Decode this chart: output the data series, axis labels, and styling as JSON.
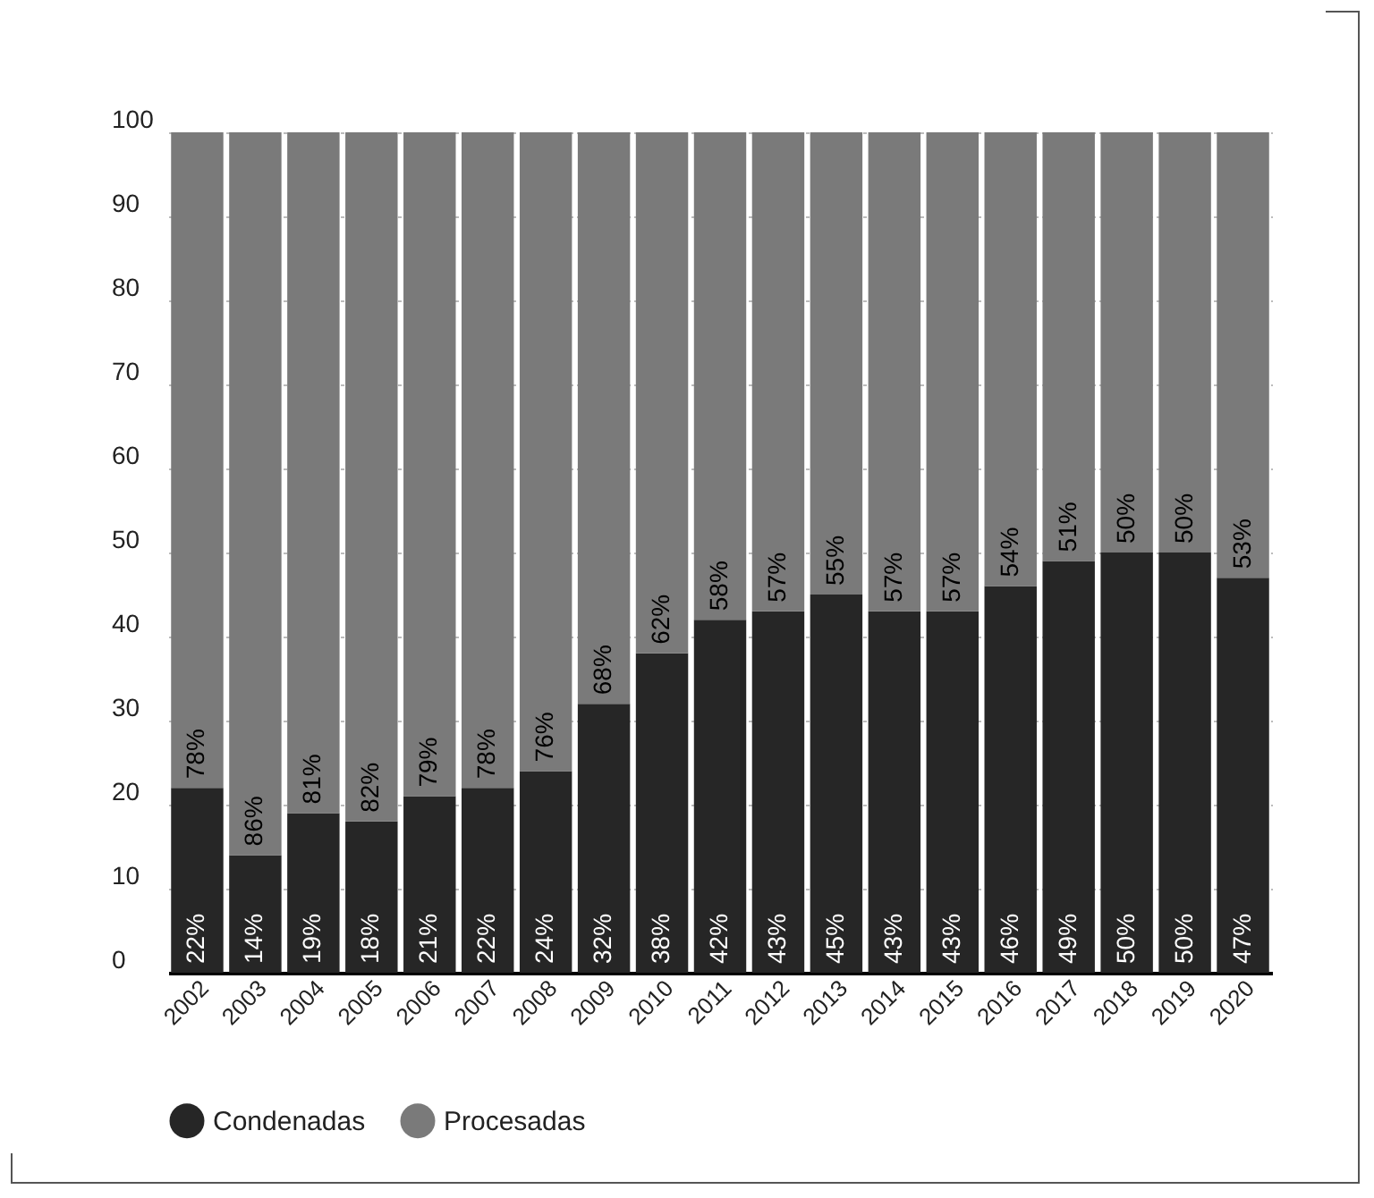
{
  "chart_data": {
    "type": "bar",
    "stacked": true,
    "categories": [
      "2002",
      "2003",
      "2004",
      "2005",
      "2006",
      "2007",
      "2008",
      "2009",
      "2010",
      "2011",
      "2012",
      "2013",
      "2014",
      "2015",
      "2016",
      "2017",
      "2018",
      "2019",
      "2020"
    ],
    "series": [
      {
        "name": "Condenadas",
        "color": "#262626",
        "values": [
          22,
          14,
          19,
          18,
          21,
          22,
          24,
          32,
          38,
          42,
          43,
          45,
          43,
          43,
          46,
          49,
          50,
          50,
          47
        ],
        "value_labels": [
          "22%",
          "14%",
          "19%",
          "18%",
          "21%",
          "22%",
          "24%",
          "32%",
          "38%",
          "42%",
          "43%",
          "45%",
          "43%",
          "43%",
          "46%",
          "49%",
          "50%",
          "50%",
          "47%"
        ]
      },
      {
        "name": "Procesadas",
        "color": "#7a7a7a",
        "values": [
          78,
          86,
          81,
          82,
          79,
          78,
          76,
          68,
          62,
          58,
          57,
          55,
          57,
          57,
          54,
          51,
          50,
          50,
          53
        ],
        "value_labels": [
          "78%",
          "86%",
          "81%",
          "82%",
          "79%",
          "78%",
          "76%",
          "68%",
          "62%",
          "58%",
          "57%",
          "55%",
          "57%",
          "57%",
          "54%",
          "51%",
          "50%",
          "50%",
          "53%"
        ]
      }
    ],
    "ylim": [
      0,
      100
    ],
    "yticks": [
      0,
      10,
      20,
      30,
      40,
      50,
      60,
      70,
      80,
      90,
      100
    ],
    "grid": "y",
    "legend": "bottom"
  }
}
